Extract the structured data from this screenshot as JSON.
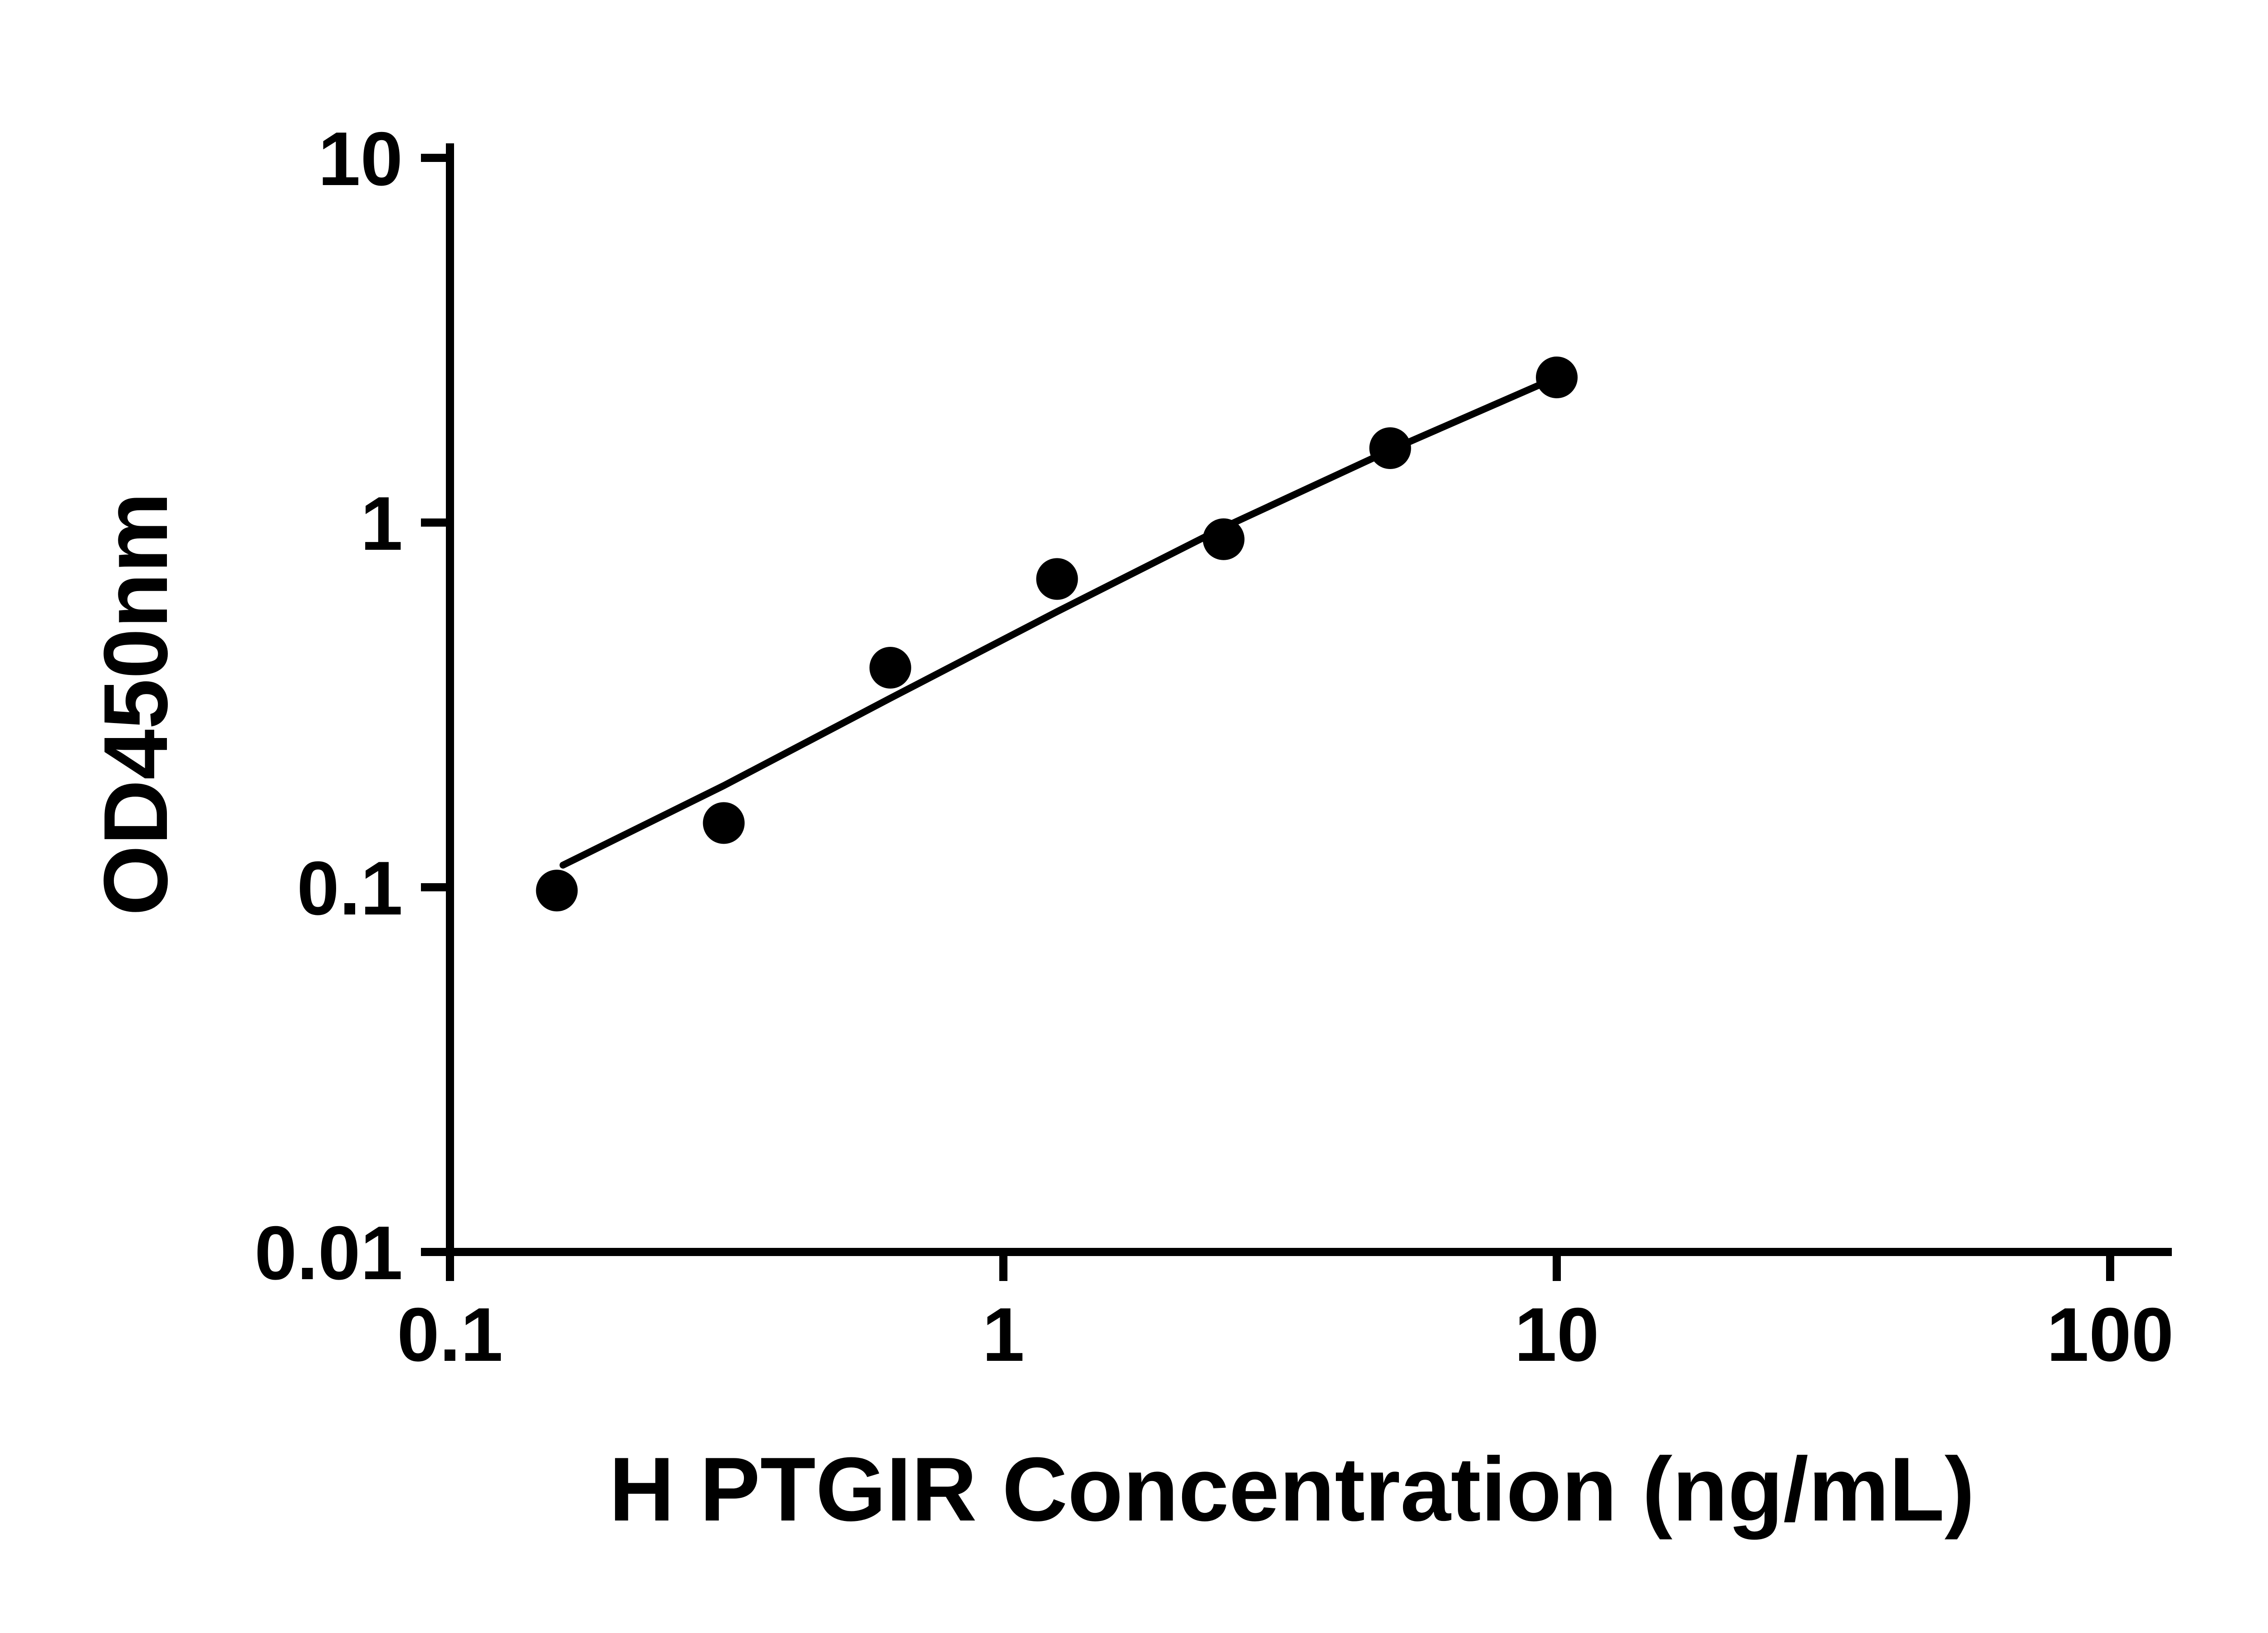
{
  "chart_data": {
    "type": "scatter",
    "title": "",
    "xlabel": "H PTGIR Concentration (ng/mL)",
    "ylabel": "OD450nm",
    "x_scale": "log",
    "y_scale": "log",
    "xlim": [
      0.1,
      100
    ],
    "ylim": [
      0.01,
      10
    ],
    "grid": false,
    "legend": null,
    "x_ticks": [
      {
        "value": 0.1,
        "label": "0.1"
      },
      {
        "value": 1,
        "label": "1"
      },
      {
        "value": 10,
        "label": "10"
      },
      {
        "value": 100,
        "label": "100"
      }
    ],
    "y_ticks": [
      {
        "value": 0.01,
        "label": "0.01"
      },
      {
        "value": 0.1,
        "label": "0.1"
      },
      {
        "value": 1,
        "label": "1"
      },
      {
        "value": 10,
        "label": "10"
      }
    ],
    "points": [
      {
        "x": 0.156,
        "y": 0.098
      },
      {
        "x": 0.3125,
        "y": 0.15
      },
      {
        "x": 0.625,
        "y": 0.4
      },
      {
        "x": 1.25,
        "y": 0.7
      },
      {
        "x": 2.5,
        "y": 0.9
      },
      {
        "x": 5,
        "y": 1.6
      },
      {
        "x": 10,
        "y": 2.5
      }
    ],
    "trend_line": [
      {
        "x": 0.16,
        "y": 0.115
      },
      {
        "x": 0.3125,
        "y": 0.19
      },
      {
        "x": 0.625,
        "y": 0.33
      },
      {
        "x": 1.25,
        "y": 0.57
      },
      {
        "x": 2.5,
        "y": 0.97
      },
      {
        "x": 5,
        "y": 1.58
      },
      {
        "x": 10,
        "y": 2.5
      }
    ],
    "colors": {
      "axis": "#000000",
      "points": "#000000",
      "line": "#000000",
      "background": "#ffffff"
    }
  }
}
